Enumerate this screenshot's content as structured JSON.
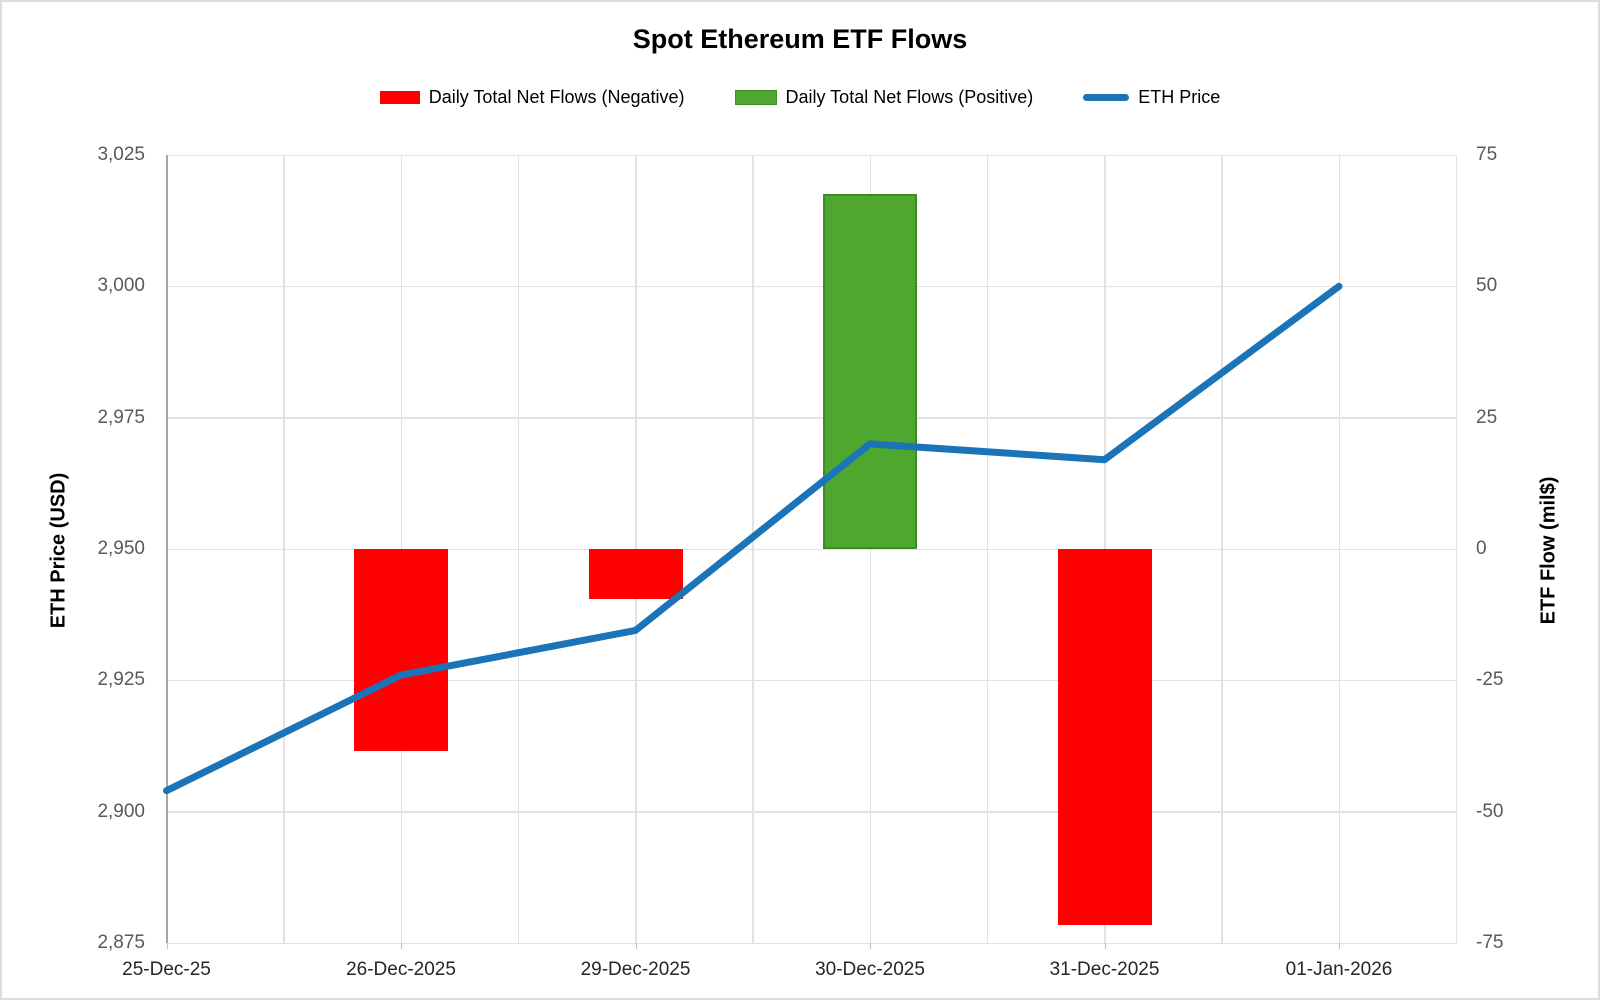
{
  "page": {
    "background": "#FFFFFF",
    "border_color": "#DDDDDD"
  },
  "chart_data": {
    "type": "combo-bar-line",
    "title": "Spot Ethereum ETF Flows",
    "categories": [
      "25-Dec-25",
      "26-Dec-2025",
      "29-Dec-2025",
      "30-Dec-2025",
      "31-Dec-2025",
      "01-Jan-2026"
    ],
    "series": [
      {
        "name": "Daily Total Net Flows (Negative)",
        "type": "bar",
        "axis": "right",
        "color": "#FF0000",
        "values": [
          null,
          -38.4,
          -9.5,
          null,
          -71.5,
          null
        ]
      },
      {
        "name": "Daily Total Net Flows (Positive)",
        "type": "bar",
        "axis": "right",
        "color": "#4EA72E",
        "border_color": "#3E8B25",
        "values": [
          null,
          null,
          null,
          67.6,
          null,
          null
        ]
      },
      {
        "name": "ETH Price",
        "type": "line",
        "axis": "left",
        "color": "#1B74B8",
        "values": [
          2904,
          2926,
          2934.5,
          2970,
          2967,
          3000
        ]
      }
    ],
    "left_axis": {
      "title": "ETH Price (USD)",
      "min": 2875,
      "max": 3025,
      "step": 25,
      "tick_labels": [
        "3,025",
        "3,000",
        "2,975",
        "2,950",
        "2,925",
        "2,900",
        "2,875"
      ]
    },
    "right_axis": {
      "title": "ETF Flow (mil$)",
      "min": -75,
      "max": 75,
      "step": 25,
      "tick_labels": [
        "75",
        "50",
        "25",
        "0",
        "-25",
        "-50",
        "-75"
      ]
    },
    "legend": {
      "position": "top"
    },
    "grid": {
      "horizontal": true,
      "vertical": true,
      "color": "#E2E2E2"
    },
    "axis_colors": {
      "axis_line": "#A6A6A6",
      "tick": "#BFBFBF",
      "x_label": "#262626",
      "y_label": "#595959"
    }
  }
}
